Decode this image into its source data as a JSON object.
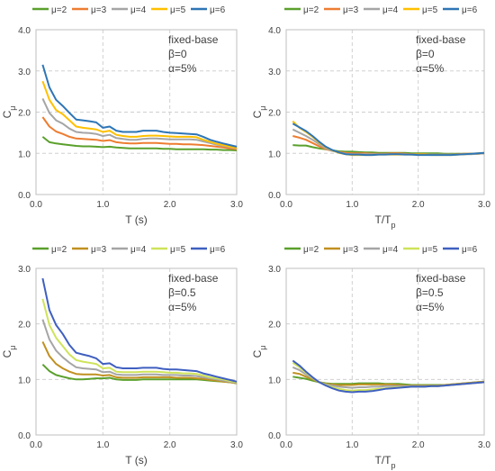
{
  "colors": {
    "mu2": "#5aa02c",
    "mu3": "#ed7d31",
    "mu4": "#a5a5a5",
    "mu5": "#ffc000",
    "mu6": "#2e75b6",
    "mu3_lower": "#c09020",
    "mu5_lower": "#cfe35a",
    "mu6_lower": "#3f5fc0"
  },
  "legend_labels": [
    "μ=2",
    "μ=3",
    "μ=4",
    "μ=5",
    "μ=6"
  ],
  "chart_data": [
    {
      "type": "line",
      "annotation": [
        "fixed-base",
        "β=0",
        "α=5%"
      ],
      "xlabel": "T (s)",
      "ylabel": "C",
      "ylabel_sub": "μ",
      "xlim": [
        0,
        3
      ],
      "ylim": [
        0,
        4
      ],
      "xticks": [
        "0.0",
        "1.0",
        "2.0",
        "3.0"
      ],
      "yticks": [
        "0.0",
        "1.0",
        "2.0",
        "3.0",
        "4.0"
      ],
      "x": [
        0.1,
        0.2,
        0.3,
        0.4,
        0.5,
        0.6,
        0.7,
        0.8,
        0.9,
        1.0,
        1.1,
        1.2,
        1.3,
        1.4,
        1.5,
        1.6,
        1.7,
        1.8,
        1.9,
        2.0,
        2.1,
        2.2,
        2.3,
        2.4,
        2.5,
        2.6,
        2.7,
        2.8,
        2.9,
        3.0
      ],
      "series": [
        {
          "name": "μ=2",
          "values": [
            1.4,
            1.27,
            1.24,
            1.22,
            1.2,
            1.18,
            1.17,
            1.17,
            1.16,
            1.15,
            1.16,
            1.14,
            1.13,
            1.12,
            1.12,
            1.12,
            1.12,
            1.12,
            1.11,
            1.11,
            1.1,
            1.1,
            1.1,
            1.1,
            1.1,
            1.09,
            1.09,
            1.08,
            1.08,
            1.07
          ]
        },
        {
          "name": "μ=3",
          "values": [
            1.88,
            1.65,
            1.53,
            1.47,
            1.4,
            1.36,
            1.35,
            1.34,
            1.33,
            1.3,
            1.32,
            1.27,
            1.25,
            1.24,
            1.24,
            1.25,
            1.25,
            1.25,
            1.24,
            1.23,
            1.23,
            1.22,
            1.22,
            1.21,
            1.2,
            1.18,
            1.16,
            1.14,
            1.12,
            1.1
          ]
        },
        {
          "name": "μ=4",
          "values": [
            2.33,
            1.98,
            1.8,
            1.72,
            1.6,
            1.52,
            1.5,
            1.49,
            1.47,
            1.42,
            1.45,
            1.37,
            1.35,
            1.33,
            1.33,
            1.35,
            1.36,
            1.36,
            1.35,
            1.34,
            1.34,
            1.34,
            1.34,
            1.33,
            1.29,
            1.25,
            1.21,
            1.18,
            1.15,
            1.12
          ]
        },
        {
          "name": "μ=5",
          "values": [
            2.75,
            2.3,
            2.05,
            1.95,
            1.8,
            1.65,
            1.62,
            1.6,
            1.58,
            1.52,
            1.55,
            1.45,
            1.42,
            1.4,
            1.4,
            1.42,
            1.43,
            1.43,
            1.42,
            1.41,
            1.4,
            1.4,
            1.4,
            1.39,
            1.33,
            1.28,
            1.23,
            1.2,
            1.16,
            1.13
          ]
        },
        {
          "name": "μ=6",
          "values": [
            3.15,
            2.6,
            2.3,
            2.15,
            1.98,
            1.82,
            1.8,
            1.78,
            1.75,
            1.62,
            1.65,
            1.55,
            1.52,
            1.52,
            1.52,
            1.55,
            1.55,
            1.55,
            1.52,
            1.5,
            1.49,
            1.48,
            1.47,
            1.46,
            1.4,
            1.33,
            1.28,
            1.24,
            1.2,
            1.16
          ]
        }
      ]
    },
    {
      "type": "line",
      "annotation": [
        "fixed-base",
        "β=0",
        "α=5%"
      ],
      "xlabel": "T/T",
      "xlabel_sub": "p",
      "ylabel": "C",
      "ylabel_sub": "μ",
      "xlim": [
        0,
        3
      ],
      "ylim": [
        0,
        4
      ],
      "xticks": [
        "0.0",
        "1.0",
        "2.0",
        "3.0"
      ],
      "yticks": [
        "0.0",
        "1.0",
        "2.0",
        "3.0",
        "4.0"
      ],
      "x": [
        0.1,
        0.2,
        0.3,
        0.4,
        0.5,
        0.6,
        0.7,
        0.8,
        0.9,
        1.0,
        1.1,
        1.2,
        1.3,
        1.4,
        1.5,
        1.6,
        1.7,
        1.8,
        1.9,
        2.0,
        2.1,
        2.2,
        2.3,
        2.4,
        2.5,
        2.6,
        2.7,
        2.8,
        2.9,
        3.0
      ],
      "series": [
        {
          "name": "μ=2",
          "values": [
            1.2,
            1.19,
            1.19,
            1.15,
            1.12,
            1.1,
            1.07,
            1.05,
            1.04,
            1.04,
            1.03,
            1.02,
            1.02,
            1.01,
            1.01,
            1.01,
            1.01,
            1.01,
            1.0,
            1.0,
            1.0,
            1.0,
            1.0,
            0.99,
            0.99,
            0.99,
            0.99,
            0.99,
            0.99,
            1.0
          ]
        },
        {
          "name": "μ=3",
          "values": [
            1.42,
            1.38,
            1.33,
            1.25,
            1.17,
            1.1,
            1.06,
            1.03,
            1.01,
            1.0,
            1.0,
            1.0,
            0.99,
            0.99,
            0.99,
            1.0,
            1.0,
            0.99,
            0.98,
            0.98,
            0.98,
            0.97,
            0.97,
            0.97,
            0.97,
            0.98,
            0.99,
            0.99,
            0.99,
            1.0
          ]
        },
        {
          "name": "μ=4",
          "values": [
            1.58,
            1.5,
            1.42,
            1.33,
            1.22,
            1.12,
            1.06,
            1.02,
            0.99,
            0.98,
            0.98,
            0.98,
            0.98,
            0.98,
            0.98,
            0.98,
            0.98,
            0.98,
            0.97,
            0.97,
            0.97,
            0.97,
            0.97,
            0.97,
            0.97,
            0.97,
            0.98,
            0.98,
            0.99,
            1.0
          ]
        },
        {
          "name": "μ=5",
          "values": [
            1.78,
            1.62,
            1.52,
            1.4,
            1.26,
            1.15,
            1.07,
            1.01,
            0.98,
            0.96,
            0.96,
            0.96,
            0.96,
            0.97,
            0.97,
            0.97,
            0.97,
            0.97,
            0.97,
            0.97,
            0.97,
            0.96,
            0.96,
            0.96,
            0.96,
            0.97,
            0.98,
            0.99,
            1.0,
            1.01
          ]
        },
        {
          "name": "μ=6",
          "values": [
            1.72,
            1.63,
            1.54,
            1.42,
            1.28,
            1.16,
            1.08,
            1.02,
            0.98,
            0.97,
            0.97,
            0.96,
            0.96,
            0.97,
            0.97,
            0.98,
            0.98,
            0.97,
            0.97,
            0.96,
            0.96,
            0.96,
            0.96,
            0.96,
            0.96,
            0.97,
            0.98,
            0.99,
            1.0,
            1.01
          ]
        }
      ]
    },
    {
      "type": "line",
      "annotation": [
        "fixed-base",
        "β=0.5",
        "α=5%"
      ],
      "xlabel": "T (s)",
      "ylabel": "C",
      "ylabel_sub": "μ",
      "xlim": [
        0,
        3
      ],
      "ylim": [
        0,
        3
      ],
      "xticks": [
        "0.0",
        "1.0",
        "2.0",
        "3.0"
      ],
      "yticks": [
        "0.0",
        "1.0",
        "2.0",
        "3.0"
      ],
      "x": [
        0.1,
        0.2,
        0.3,
        0.4,
        0.5,
        0.6,
        0.7,
        0.8,
        0.9,
        1.0,
        1.1,
        1.2,
        1.3,
        1.4,
        1.5,
        1.6,
        1.7,
        1.8,
        1.9,
        2.0,
        2.1,
        2.2,
        2.3,
        2.4,
        2.5,
        2.6,
        2.7,
        2.8,
        2.9,
        3.0
      ],
      "series": [
        {
          "name": "μ=2",
          "values": [
            1.27,
            1.15,
            1.08,
            1.05,
            1.02,
            1.0,
            1.0,
            1.01,
            1.02,
            1.02,
            1.03,
            1.0,
            0.99,
            0.99,
            0.99,
            1.0,
            1.0,
            1.0,
            1.0,
            1.0,
            1.0,
            1.0,
            1.0,
            1.0,
            0.99,
            0.98,
            0.97,
            0.96,
            0.95,
            0.93
          ]
        },
        {
          "name": "μ=3",
          "values": [
            1.68,
            1.42,
            1.28,
            1.2,
            1.14,
            1.1,
            1.09,
            1.09,
            1.09,
            1.07,
            1.08,
            1.04,
            1.03,
            1.03,
            1.03,
            1.04,
            1.04,
            1.04,
            1.04,
            1.04,
            1.03,
            1.03,
            1.03,
            1.02,
            1.01,
            0.99,
            0.98,
            0.96,
            0.95,
            0.93
          ]
        },
        {
          "name": "μ=4",
          "values": [
            2.08,
            1.72,
            1.52,
            1.4,
            1.3,
            1.22,
            1.2,
            1.19,
            1.18,
            1.13,
            1.14,
            1.09,
            1.08,
            1.08,
            1.08,
            1.09,
            1.09,
            1.09,
            1.08,
            1.08,
            1.08,
            1.07,
            1.07,
            1.06,
            1.04,
            1.02,
            1.0,
            0.98,
            0.96,
            0.94
          ]
        },
        {
          "name": "μ=5",
          "values": [
            2.45,
            1.98,
            1.75,
            1.6,
            1.45,
            1.35,
            1.32,
            1.3,
            1.28,
            1.2,
            1.21,
            1.14,
            1.13,
            1.13,
            1.13,
            1.14,
            1.14,
            1.14,
            1.13,
            1.12,
            1.12,
            1.11,
            1.11,
            1.1,
            1.07,
            1.04,
            1.02,
            1.0,
            0.97,
            0.95
          ]
        },
        {
          "name": "μ=6",
          "values": [
            2.82,
            2.25,
            1.98,
            1.82,
            1.62,
            1.48,
            1.45,
            1.42,
            1.38,
            1.28,
            1.29,
            1.22,
            1.2,
            1.2,
            1.2,
            1.21,
            1.21,
            1.21,
            1.19,
            1.18,
            1.18,
            1.17,
            1.16,
            1.15,
            1.11,
            1.08,
            1.05,
            1.02,
            0.99,
            0.96
          ]
        }
      ]
    },
    {
      "type": "line",
      "annotation": [
        "fixed-base",
        "β=0.5",
        "α=5%"
      ],
      "xlabel": "T/T",
      "xlabel_sub": "p",
      "ylabel": "C",
      "ylabel_sub": "μ",
      "xlim": [
        0,
        3
      ],
      "ylim": [
        0,
        3
      ],
      "xticks": [
        "0.0",
        "1.0",
        "2.0",
        "3.0"
      ],
      "yticks": [
        "0.0",
        "1.0",
        "2.0",
        "3.0"
      ],
      "x": [
        0.1,
        0.2,
        0.3,
        0.4,
        0.5,
        0.6,
        0.7,
        0.8,
        0.9,
        1.0,
        1.1,
        1.2,
        1.3,
        1.4,
        1.5,
        1.6,
        1.7,
        1.8,
        1.9,
        2.0,
        2.1,
        2.2,
        2.3,
        2.4,
        2.5,
        2.6,
        2.7,
        2.8,
        2.9,
        3.0
      ],
      "series": [
        {
          "name": "μ=2",
          "values": [
            1.05,
            1.03,
            1.01,
            0.98,
            0.95,
            0.93,
            0.92,
            0.92,
            0.92,
            0.92,
            0.93,
            0.93,
            0.93,
            0.93,
            0.92,
            0.92,
            0.92,
            0.91,
            0.9,
            0.9,
            0.9,
            0.9,
            0.9,
            0.9,
            0.91,
            0.92,
            0.93,
            0.94,
            0.95,
            0.96
          ]
        },
        {
          "name": "μ=3",
          "values": [
            1.12,
            1.1,
            1.05,
            1.0,
            0.95,
            0.92,
            0.91,
            0.9,
            0.9,
            0.9,
            0.91,
            0.91,
            0.91,
            0.91,
            0.91,
            0.91,
            0.9,
            0.89,
            0.89,
            0.89,
            0.89,
            0.89,
            0.89,
            0.9,
            0.91,
            0.92,
            0.93,
            0.94,
            0.95,
            0.96
          ]
        },
        {
          "name": "μ=4",
          "values": [
            1.22,
            1.17,
            1.09,
            1.02,
            0.95,
            0.91,
            0.89,
            0.87,
            0.86,
            0.85,
            0.86,
            0.86,
            0.87,
            0.87,
            0.88,
            0.88,
            0.88,
            0.88,
            0.88,
            0.88,
            0.88,
            0.88,
            0.88,
            0.89,
            0.9,
            0.91,
            0.92,
            0.93,
            0.94,
            0.95
          ]
        },
        {
          "name": "μ=5",
          "values": [
            1.3,
            1.22,
            1.12,
            1.03,
            0.95,
            0.9,
            0.86,
            0.83,
            0.81,
            0.8,
            0.81,
            0.81,
            0.82,
            0.83,
            0.84,
            0.85,
            0.86,
            0.86,
            0.87,
            0.87,
            0.87,
            0.88,
            0.88,
            0.89,
            0.9,
            0.91,
            0.92,
            0.93,
            0.94,
            0.95
          ]
        },
        {
          "name": "μ=6",
          "values": [
            1.34,
            1.25,
            1.14,
            1.04,
            0.95,
            0.89,
            0.84,
            0.8,
            0.78,
            0.77,
            0.78,
            0.78,
            0.79,
            0.81,
            0.83,
            0.84,
            0.85,
            0.86,
            0.87,
            0.87,
            0.87,
            0.88,
            0.88,
            0.89,
            0.9,
            0.91,
            0.92,
            0.93,
            0.94,
            0.95
          ]
        }
      ]
    }
  ]
}
